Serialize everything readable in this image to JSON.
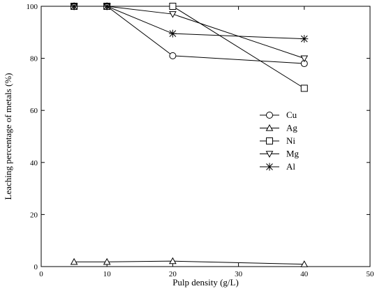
{
  "chart_data": {
    "type": "line",
    "xlabel": "Pulp density (g/L)",
    "ylabel": "Leaching percentage of metals (%)",
    "xlim": [
      0,
      50
    ],
    "ylim": [
      0,
      100
    ],
    "x_ticks": [
      0,
      10,
      20,
      30,
      40,
      50
    ],
    "y_ticks": [
      0,
      20,
      40,
      60,
      80,
      100
    ],
    "grid": false,
    "legend_position": "right",
    "x": [
      5,
      10,
      20,
      40
    ],
    "series": [
      {
        "name": "Cu",
        "marker": "circle",
        "values": [
          100,
          100,
          81,
          78
        ]
      },
      {
        "name": "Ag",
        "marker": "triangle-up",
        "values": [
          1.8,
          1.8,
          2.1,
          0.9
        ]
      },
      {
        "name": "Ni",
        "marker": "square",
        "values": [
          100,
          100,
          100,
          68.5
        ]
      },
      {
        "name": "Mg",
        "marker": "triangle-down",
        "values": [
          100,
          100,
          97,
          80
        ]
      },
      {
        "name": "Al",
        "marker": "star",
        "values": [
          100,
          100,
          89.5,
          87.5
        ]
      }
    ]
  }
}
